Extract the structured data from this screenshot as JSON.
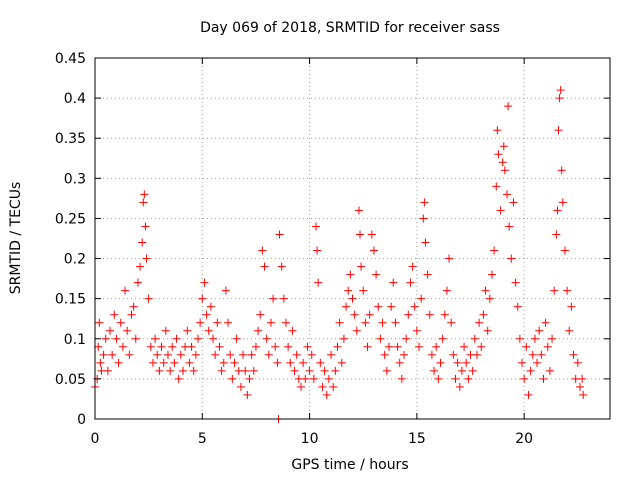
{
  "chart_data": {
    "type": "scatter",
    "title": "Day 069 of 2018, SRMTID for receiver sass",
    "xlabel": "GPS time / hours",
    "ylabel": "SRMTID / TECUs",
    "xlim": [
      0,
      24
    ],
    "ylim": [
      0,
      0.45
    ],
    "x_ticks": [
      0,
      5,
      10,
      15,
      20
    ],
    "y_ticks": [
      0,
      0.05,
      0.1,
      0.15,
      0.2,
      0.25,
      0.3,
      0.35,
      0.4,
      0.45
    ],
    "x_tick_labels": [
      "0",
      "5",
      "10",
      "15",
      "20"
    ],
    "y_tick_labels": [
      "0",
      "0.05",
      "0.1",
      "0.15",
      "0.2",
      "0.25",
      "0.3",
      "0.35",
      "0.4",
      "0.45"
    ],
    "grid": true,
    "legend": "none",
    "marker": "+",
    "color": "#ff0000",
    "series": [
      {
        "name": "SRMTID",
        "points": [
          [
            0.0,
            0.04
          ],
          [
            0.1,
            0.05
          ],
          [
            0.15,
            0.09
          ],
          [
            0.2,
            0.12
          ],
          [
            0.25,
            0.07
          ],
          [
            0.3,
            0.06
          ],
          [
            0.4,
            0.08
          ],
          [
            0.5,
            0.1
          ],
          [
            0.6,
            0.06
          ],
          [
            0.7,
            0.11
          ],
          [
            0.8,
            0.08
          ],
          [
            0.9,
            0.13
          ],
          [
            1.0,
            0.1
          ],
          [
            1.1,
            0.07
          ],
          [
            1.2,
            0.12
          ],
          [
            1.3,
            0.09
          ],
          [
            1.4,
            0.16
          ],
          [
            1.5,
            0.11
          ],
          [
            1.6,
            0.08
          ],
          [
            1.7,
            0.13
          ],
          [
            1.8,
            0.14
          ],
          [
            1.9,
            0.1
          ],
          [
            2.0,
            0.17
          ],
          [
            2.1,
            0.19
          ],
          [
            2.2,
            0.22
          ],
          [
            2.25,
            0.27
          ],
          [
            2.3,
            0.28
          ],
          [
            2.35,
            0.24
          ],
          [
            2.4,
            0.2
          ],
          [
            2.5,
            0.15
          ],
          [
            2.6,
            0.09
          ],
          [
            2.7,
            0.07
          ],
          [
            2.8,
            0.1
          ],
          [
            2.9,
            0.08
          ],
          [
            3.0,
            0.06
          ],
          [
            3.1,
            0.09
          ],
          [
            3.2,
            0.07
          ],
          [
            3.3,
            0.11
          ],
          [
            3.4,
            0.08
          ],
          [
            3.5,
            0.06
          ],
          [
            3.6,
            0.09
          ],
          [
            3.7,
            0.07
          ],
          [
            3.8,
            0.1
          ],
          [
            3.9,
            0.05
          ],
          [
            4.0,
            0.08
          ],
          [
            4.1,
            0.06
          ],
          [
            4.2,
            0.09
          ],
          [
            4.3,
            0.11
          ],
          [
            4.4,
            0.07
          ],
          [
            4.5,
            0.09
          ],
          [
            4.6,
            0.06
          ],
          [
            4.7,
            0.08
          ],
          [
            4.8,
            0.1
          ],
          [
            4.9,
            0.12
          ],
          [
            5.0,
            0.15
          ],
          [
            5.1,
            0.17
          ],
          [
            5.2,
            0.13
          ],
          [
            5.3,
            0.11
          ],
          [
            5.4,
            0.14
          ],
          [
            5.5,
            0.1
          ],
          [
            5.6,
            0.08
          ],
          [
            5.7,
            0.12
          ],
          [
            5.8,
            0.09
          ],
          [
            5.9,
            0.06
          ],
          [
            6.0,
            0.07
          ],
          [
            6.1,
            0.16
          ],
          [
            6.2,
            0.12
          ],
          [
            6.3,
            0.08
          ],
          [
            6.4,
            0.05
          ],
          [
            6.5,
            0.07
          ],
          [
            6.6,
            0.1
          ],
          [
            6.7,
            0.06
          ],
          [
            6.8,
            0.04
          ],
          [
            6.9,
            0.08
          ],
          [
            7.0,
            0.06
          ],
          [
            7.1,
            0.03
          ],
          [
            7.2,
            0.05
          ],
          [
            7.3,
            0.08
          ],
          [
            7.4,
            0.06
          ],
          [
            7.5,
            0.09
          ],
          [
            7.6,
            0.11
          ],
          [
            7.7,
            0.13
          ],
          [
            7.8,
            0.21
          ],
          [
            7.9,
            0.19
          ],
          [
            8.0,
            0.1
          ],
          [
            8.1,
            0.08
          ],
          [
            8.2,
            0.12
          ],
          [
            8.3,
            0.15
          ],
          [
            8.4,
            0.09
          ],
          [
            8.5,
            0.07
          ],
          [
            8.55,
            0.0
          ],
          [
            8.6,
            0.23
          ],
          [
            8.7,
            0.19
          ],
          [
            8.8,
            0.15
          ],
          [
            8.9,
            0.12
          ],
          [
            9.0,
            0.09
          ],
          [
            9.1,
            0.07
          ],
          [
            9.2,
            0.11
          ],
          [
            9.3,
            0.06
          ],
          [
            9.4,
            0.08
          ],
          [
            9.5,
            0.05
          ],
          [
            9.6,
            0.04
          ],
          [
            9.7,
            0.07
          ],
          [
            9.8,
            0.05
          ],
          [
            9.9,
            0.09
          ],
          [
            10.0,
            0.06
          ],
          [
            10.1,
            0.08
          ],
          [
            10.2,
            0.05
          ],
          [
            10.3,
            0.24
          ],
          [
            10.35,
            0.21
          ],
          [
            10.4,
            0.17
          ],
          [
            10.5,
            0.07
          ],
          [
            10.6,
            0.04
          ],
          [
            10.7,
            0.06
          ],
          [
            10.8,
            0.03
          ],
          [
            10.9,
            0.05
          ],
          [
            11.0,
            0.08
          ],
          [
            11.1,
            0.04
          ],
          [
            11.2,
            0.06
          ],
          [
            11.3,
            0.09
          ],
          [
            11.4,
            0.12
          ],
          [
            11.5,
            0.07
          ],
          [
            11.6,
            0.1
          ],
          [
            11.7,
            0.14
          ],
          [
            11.8,
            0.16
          ],
          [
            11.9,
            0.18
          ],
          [
            12.0,
            0.15
          ],
          [
            12.1,
            0.13
          ],
          [
            12.2,
            0.11
          ],
          [
            12.3,
            0.26
          ],
          [
            12.35,
            0.23
          ],
          [
            12.4,
            0.19
          ],
          [
            12.5,
            0.16
          ],
          [
            12.6,
            0.12
          ],
          [
            12.7,
            0.09
          ],
          [
            12.8,
            0.13
          ],
          [
            12.9,
            0.23
          ],
          [
            13.0,
            0.21
          ],
          [
            13.1,
            0.18
          ],
          [
            13.2,
            0.14
          ],
          [
            13.3,
            0.1
          ],
          [
            13.4,
            0.12
          ],
          [
            13.5,
            0.08
          ],
          [
            13.6,
            0.06
          ],
          [
            13.7,
            0.09
          ],
          [
            13.8,
            0.14
          ],
          [
            13.9,
            0.17
          ],
          [
            14.0,
            0.12
          ],
          [
            14.1,
            0.09
          ],
          [
            14.2,
            0.07
          ],
          [
            14.3,
            0.05
          ],
          [
            14.4,
            0.08
          ],
          [
            14.5,
            0.1
          ],
          [
            14.6,
            0.13
          ],
          [
            14.7,
            0.17
          ],
          [
            14.8,
            0.19
          ],
          [
            14.9,
            0.14
          ],
          [
            15.0,
            0.11
          ],
          [
            15.1,
            0.09
          ],
          [
            15.2,
            0.15
          ],
          [
            15.3,
            0.25
          ],
          [
            15.35,
            0.27
          ],
          [
            15.4,
            0.22
          ],
          [
            15.5,
            0.18
          ],
          [
            15.6,
            0.13
          ],
          [
            15.7,
            0.08
          ],
          [
            15.8,
            0.06
          ],
          [
            15.9,
            0.09
          ],
          [
            16.0,
            0.05
          ],
          [
            16.1,
            0.07
          ],
          [
            16.2,
            0.1
          ],
          [
            16.3,
            0.13
          ],
          [
            16.4,
            0.16
          ],
          [
            16.5,
            0.2
          ],
          [
            16.6,
            0.12
          ],
          [
            16.7,
            0.08
          ],
          [
            16.8,
            0.05
          ],
          [
            16.9,
            0.07
          ],
          [
            17.0,
            0.04
          ],
          [
            17.1,
            0.06
          ],
          [
            17.2,
            0.09
          ],
          [
            17.3,
            0.07
          ],
          [
            17.4,
            0.05
          ],
          [
            17.5,
            0.08
          ],
          [
            17.6,
            0.06
          ],
          [
            17.7,
            0.1
          ],
          [
            17.8,
            0.08
          ],
          [
            17.9,
            0.12
          ],
          [
            18.0,
            0.09
          ],
          [
            18.1,
            0.13
          ],
          [
            18.2,
            0.16
          ],
          [
            18.3,
            0.11
          ],
          [
            18.4,
            0.15
          ],
          [
            18.5,
            0.18
          ],
          [
            18.6,
            0.21
          ],
          [
            18.7,
            0.29
          ],
          [
            18.75,
            0.36
          ],
          [
            18.8,
            0.33
          ],
          [
            18.9,
            0.26
          ],
          [
            19.0,
            0.32
          ],
          [
            19.05,
            0.34
          ],
          [
            19.1,
            0.31
          ],
          [
            19.2,
            0.28
          ],
          [
            19.25,
            0.39
          ],
          [
            19.3,
            0.24
          ],
          [
            19.4,
            0.2
          ],
          [
            19.5,
            0.27
          ],
          [
            19.6,
            0.17
          ],
          [
            19.7,
            0.14
          ],
          [
            19.8,
            0.1
          ],
          [
            19.9,
            0.07
          ],
          [
            20.0,
            0.05
          ],
          [
            20.1,
            0.09
          ],
          [
            20.2,
            0.03
          ],
          [
            20.3,
            0.06
          ],
          [
            20.4,
            0.08
          ],
          [
            20.5,
            0.1
          ],
          [
            20.6,
            0.07
          ],
          [
            20.7,
            0.11
          ],
          [
            20.8,
            0.08
          ],
          [
            20.9,
            0.05
          ],
          [
            21.0,
            0.12
          ],
          [
            21.1,
            0.09
          ],
          [
            21.2,
            0.06
          ],
          [
            21.3,
            0.1
          ],
          [
            21.4,
            0.16
          ],
          [
            21.5,
            0.23
          ],
          [
            21.55,
            0.26
          ],
          [
            21.6,
            0.36
          ],
          [
            21.65,
            0.4
          ],
          [
            21.7,
            0.41
          ],
          [
            21.75,
            0.31
          ],
          [
            21.8,
            0.27
          ],
          [
            21.9,
            0.21
          ],
          [
            22.0,
            0.16
          ],
          [
            22.1,
            0.11
          ],
          [
            22.2,
            0.14
          ],
          [
            22.3,
            0.08
          ],
          [
            22.4,
            0.05
          ],
          [
            22.5,
            0.07
          ],
          [
            22.6,
            0.04
          ],
          [
            22.7,
            0.05
          ],
          [
            22.75,
            0.03
          ]
        ]
      }
    ]
  }
}
